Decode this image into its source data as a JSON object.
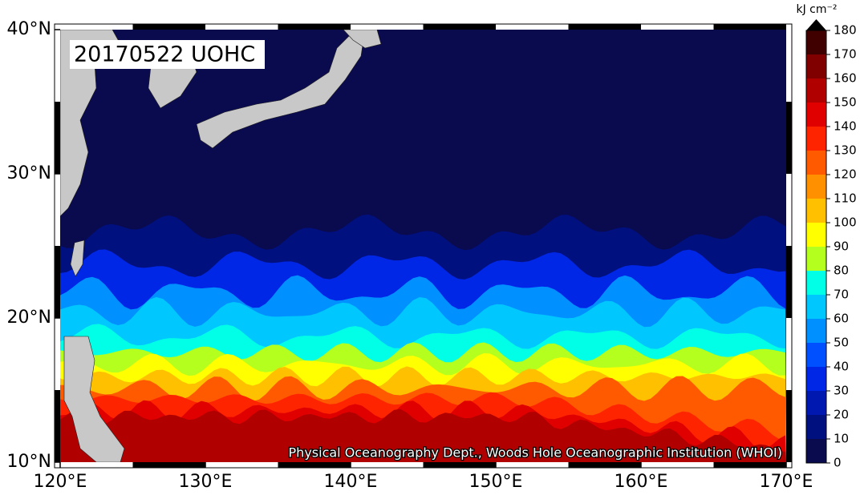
{
  "map": {
    "title": "20170522 UOHC",
    "credit": "Physical Oceanography Dept., Woods Hole Oceanographic Institution (WHOI)",
    "xticks": [
      {
        "value": 120,
        "label": "120°E"
      },
      {
        "value": 130,
        "label": "130°E"
      },
      {
        "value": 140,
        "label": "140°E"
      },
      {
        "value": 150,
        "label": "150°E"
      },
      {
        "value": 160,
        "label": "160°E"
      },
      {
        "value": 170,
        "label": "170°E"
      }
    ],
    "yticks": [
      {
        "value": 10,
        "label": "10°N"
      },
      {
        "value": 20,
        "label": "20°N"
      },
      {
        "value": 30,
        "label": "30°N"
      },
      {
        "value": 40,
        "label": "40°N"
      }
    ],
    "xlim": [
      120,
      170
    ],
    "ylim": [
      10,
      40
    ]
  },
  "colorbar": {
    "unit": "kJ cm⁻²",
    "ticks": [
      0,
      10,
      20,
      30,
      40,
      50,
      60,
      70,
      80,
      90,
      100,
      110,
      120,
      130,
      140,
      150,
      160,
      170,
      180
    ],
    "colors": [
      "#0a0a4e",
      "#00107f",
      "#0018b0",
      "#0026e6",
      "#0050ff",
      "#0090ff",
      "#00c8ff",
      "#00ffe6",
      "#b4ff1e",
      "#ffff00",
      "#ffc000",
      "#ff9000",
      "#ff5a00",
      "#ff2400",
      "#e00000",
      "#b00000",
      "#800000",
      "#400000"
    ]
  }
}
